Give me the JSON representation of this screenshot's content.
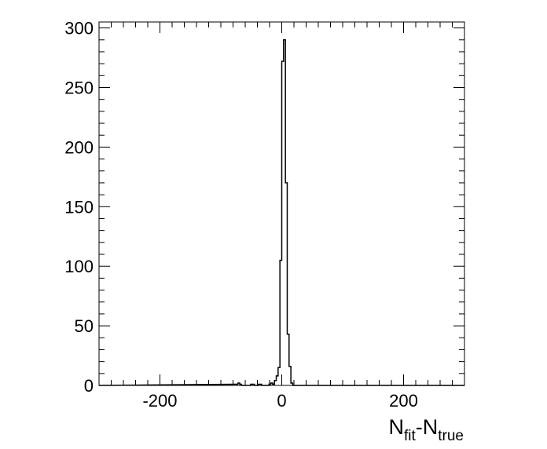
{
  "chart_data": {
    "type": "histogram",
    "title": "",
    "xlabel": {
      "base1": "N",
      "sub1": "fit",
      "sep": "-",
      "base2": "N",
      "sub2": "true"
    },
    "ylabel": "",
    "xlim": [
      -300,
      300
    ],
    "ylim": [
      0,
      305
    ],
    "x_major_ticks": [
      -200,
      0,
      200
    ],
    "x_minor_step": 20,
    "y_major_ticks": [
      0,
      50,
      100,
      150,
      200,
      250,
      300
    ],
    "y_minor_step": 10,
    "bin_width": 3,
    "bins": [
      {
        "x0": -75,
        "count": 1
      },
      {
        "x0": -72,
        "count": 2
      },
      {
        "x0": -69,
        "count": 1
      },
      {
        "x0": -66,
        "count": 0
      },
      {
        "x0": -63,
        "count": 0
      },
      {
        "x0": -60,
        "count": 0
      },
      {
        "x0": -57,
        "count": 0
      },
      {
        "x0": -54,
        "count": 0
      },
      {
        "x0": -51,
        "count": 1
      },
      {
        "x0": -48,
        "count": 1
      },
      {
        "x0": -45,
        "count": 0
      },
      {
        "x0": -42,
        "count": 0
      },
      {
        "x0": -39,
        "count": 1
      },
      {
        "x0": -36,
        "count": 1
      },
      {
        "x0": -33,
        "count": 0
      },
      {
        "x0": -30,
        "count": 0
      },
      {
        "x0": -27,
        "count": 0
      },
      {
        "x0": -24,
        "count": 0
      },
      {
        "x0": -21,
        "count": 1
      },
      {
        "x0": -18,
        "count": 2
      },
      {
        "x0": -15,
        "count": 1
      },
      {
        "x0": -12,
        "count": 4
      },
      {
        "x0": -9,
        "count": 8
      },
      {
        "x0": -6,
        "count": 15
      },
      {
        "x0": -3,
        "count": 105
      },
      {
        "x0": 0,
        "count": 272
      },
      {
        "x0": 3,
        "count": 290
      },
      {
        "x0": 6,
        "count": 170
      },
      {
        "x0": 9,
        "count": 43
      },
      {
        "x0": 12,
        "count": 16
      },
      {
        "x0": 15,
        "count": 2
      }
    ]
  }
}
